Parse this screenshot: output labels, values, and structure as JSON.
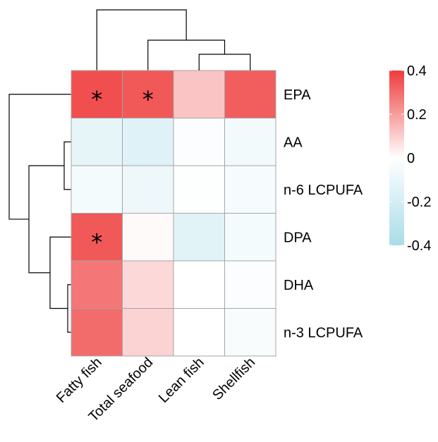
{
  "chart_data": {
    "type": "heatmap",
    "title": "",
    "xlabel": "",
    "ylabel": "",
    "columns": [
      "Fatty fish",
      "Total seafood",
      "Lean fish",
      "Shellfish"
    ],
    "rows": [
      "EPA",
      "AA",
      "n-6 LCPUFA",
      "DPA",
      "DHA",
      "n-3 LCPUFA"
    ],
    "values": [
      [
        0.36,
        0.34,
        0.12,
        0.33
      ],
      [
        -0.12,
        -0.15,
        -0.02,
        -0.06
      ],
      [
        -0.05,
        -0.08,
        -0.01,
        -0.04
      ],
      [
        0.34,
        0.01,
        -0.14,
        -0.05
      ],
      [
        0.28,
        0.08,
        0.0,
        -0.02
      ],
      [
        0.3,
        0.09,
        0.0,
        -0.03
      ]
    ],
    "significant": [
      [
        0,
        0
      ],
      [
        0,
        1
      ],
      [
        3,
        0
      ]
    ],
    "significance_marker": "*",
    "color_scale": {
      "min": -0.4,
      "max": 0.4,
      "low_color": "#a8dde9",
      "mid_color": "#ffffff",
      "high_color": "#ef3b3b",
      "ticks": [
        0.4,
        0.2,
        0,
        -0.2,
        -0.4
      ],
      "tick_labels": [
        "0.4",
        "0.2",
        "0",
        "-0.2",
        "-0.4"
      ]
    },
    "legend_position": "right",
    "column_dendrogram": true,
    "row_dendrogram": true
  }
}
